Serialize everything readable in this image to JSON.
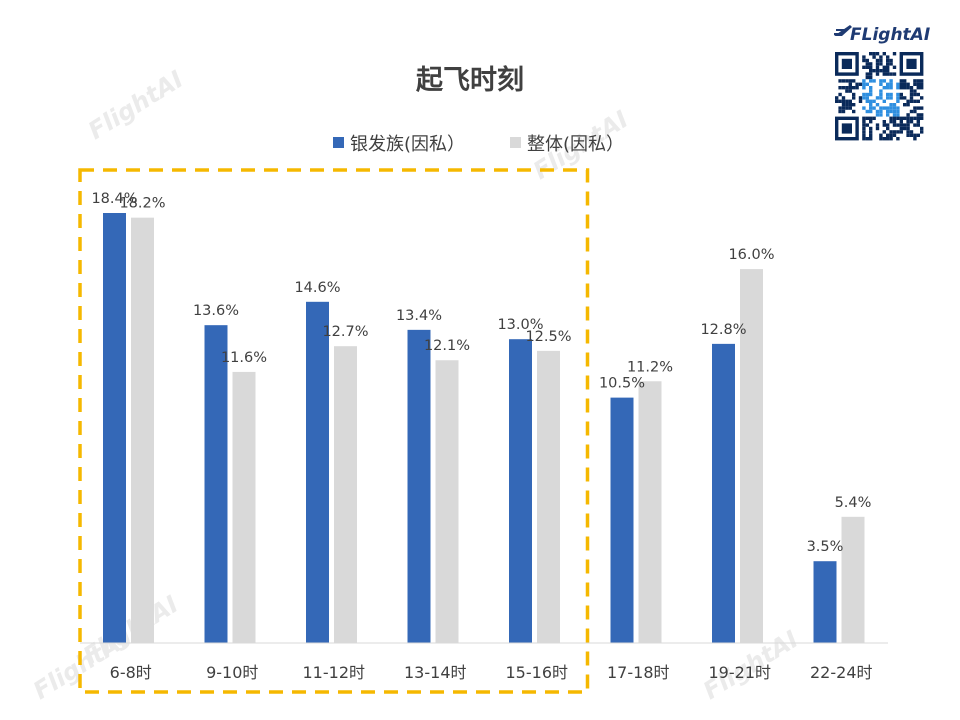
{
  "brand": {
    "logo_text": "FLightAI"
  },
  "watermarks": [
    "FlightAI",
    "FlightAI",
    "FlightAI",
    "FlightAI",
    "FlightAI"
  ],
  "chart_data": {
    "type": "bar",
    "title": "起飞时刻",
    "categories": [
      "6-8时",
      "9-10时",
      "11-12时",
      "13-14时",
      "15-16时",
      "17-18时",
      "19-21时",
      "22-24时"
    ],
    "series": [
      {
        "name": "银发族(因私）",
        "color": "#3468b7",
        "values": [
          18.4,
          13.6,
          14.6,
          13.4,
          13.0,
          10.5,
          12.8,
          3.5
        ],
        "labels": [
          "18.4%",
          "13.6%",
          "14.6%",
          "13.4%",
          "13.0%",
          "10.5%",
          "12.8%",
          "3.5%"
        ]
      },
      {
        "name": "整体(因私）",
        "color": "#d9d9d9",
        "values": [
          18.2,
          11.6,
          12.7,
          12.1,
          12.5,
          11.2,
          16.0,
          5.4
        ],
        "labels": [
          "18.2%",
          "11.6%",
          "12.7%",
          "12.1%",
          "12.5%",
          "11.2%",
          "16.0%",
          "5.4%"
        ]
      }
    ],
    "ylim": [
      0,
      18.4
    ],
    "grid": false,
    "legend_position": "top",
    "highlight": {
      "from_category": "6-8时",
      "to_category": "15-16时",
      "color": "#f5b800"
    }
  }
}
